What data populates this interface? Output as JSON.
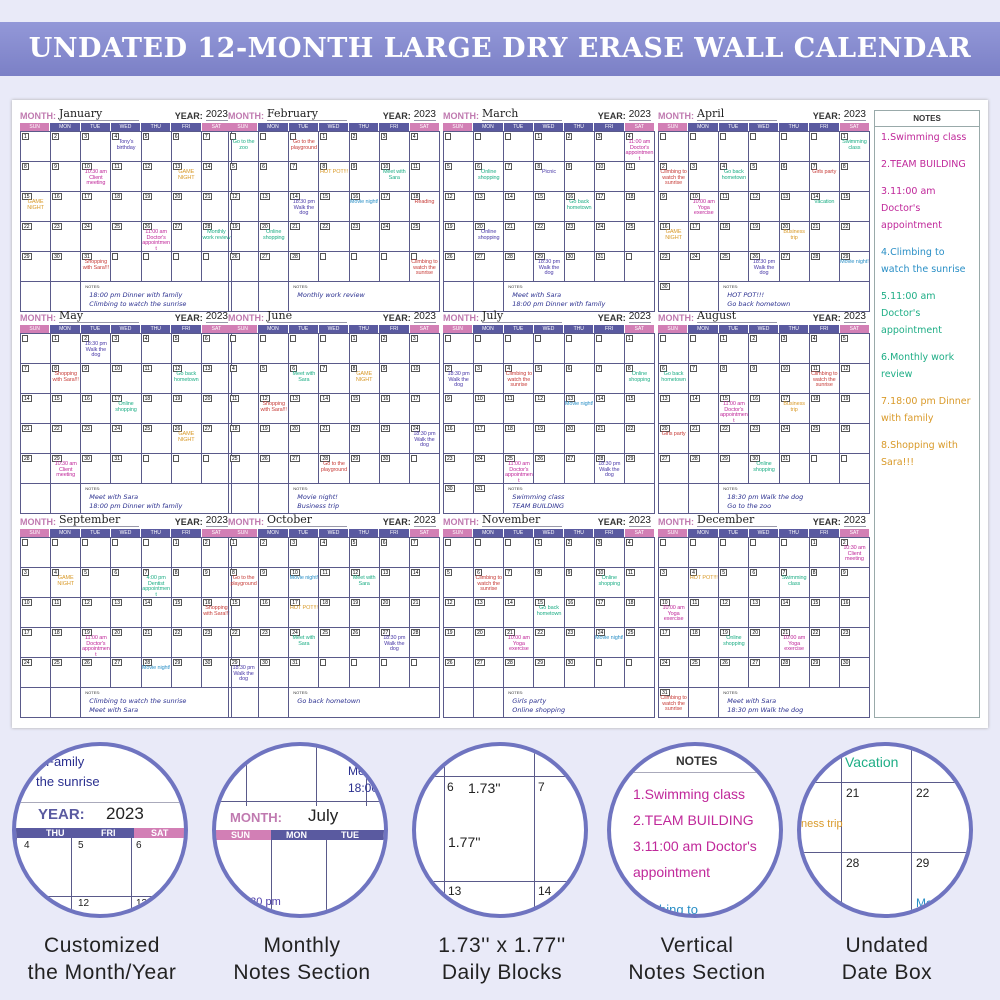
{
  "title": "UNDATED 12-MONTH LARGE DRY ERASE WALL CALENDAR",
  "labels": {
    "month": "MONTH:",
    "year": "YEAR:",
    "notes": "NOTES:",
    "days": [
      "SUN",
      "MON",
      "TUE",
      "WED",
      "THU",
      "FRI",
      "SAT"
    ]
  },
  "colors": {
    "pink": "#c0289a",
    "orange": "#d99a2a",
    "teal": "#1fae86",
    "purple": "#4a3aa8",
    "red": "#c8403c",
    "blue": "#2a8fc6",
    "navy": "#2a2f8f"
  },
  "months": [
    {
      "name": "January",
      "year": "2023",
      "start": 0,
      "days": 31,
      "notes": [
        [
          4,
          "Tony's birthday",
          "purple"
        ],
        [
          10,
          "10:30 am Client meeting",
          "pink"
        ],
        [
          13,
          "GAME NIGHT",
          "orange"
        ],
        [
          15,
          "GAME NIGHT",
          "orange"
        ],
        [
          26,
          "11:00 am Doctor's appointment",
          "pink"
        ],
        [
          28,
          "Monthly work review",
          "teal"
        ],
        [
          31,
          "Shopping with Sara!!!",
          "red"
        ]
      ],
      "memo": [
        "18:00 pm Dinner with family",
        "Climbing to watch the sunrise"
      ]
    },
    {
      "name": "February",
      "year": "2023",
      "start": 3,
      "days": 28,
      "notes": [
        [
          -1,
          "Go to the zoo",
          "teal"
        ],
        [
          -3,
          "Go to the playground",
          "red"
        ],
        [
          8,
          "HOT POT!!!",
          "orange"
        ],
        [
          10,
          "Meet with Sara",
          "teal"
        ],
        [
          14,
          "18:30 pm Walk the dog",
          "purple"
        ],
        [
          16,
          "Movie night!",
          "blue"
        ],
        [
          18,
          "Reading",
          "red"
        ],
        [
          20,
          "Online shopping",
          "teal"
        ],
        [
          34,
          "Climbing to watch the sunrise",
          "red"
        ]
      ],
      "memo": [
        "Monthly work review"
      ]
    },
    {
      "name": "March",
      "year": "2023",
      "start": 3,
      "days": 31,
      "notes": [
        [
          4,
          "11:00 am Doctor's appointment",
          "pink"
        ],
        [
          6,
          "Online shopping",
          "teal"
        ],
        [
          8,
          "Picnic",
          "purple"
        ],
        [
          16,
          "Go back hometown",
          "teal"
        ],
        [
          20,
          "Online shopping",
          "purple"
        ],
        [
          29,
          "18:30 pm Walk the dog",
          "purple"
        ]
      ],
      "memo": [
        "Meet with Sara",
        "18:00 pm Dinner with family"
      ]
    },
    {
      "name": "April",
      "year": "2023",
      "start": 6,
      "days": 30,
      "notes": [
        [
          1,
          "Swimming class",
          "teal"
        ],
        [
          2,
          "Climbing to watch the sunrise",
          "red"
        ],
        [
          4,
          "Go back hometown",
          "teal"
        ],
        [
          7,
          "Girls party",
          "red"
        ],
        [
          10,
          "10:00 am Yoga exercise",
          "pink"
        ],
        [
          14,
          "Vacation",
          "teal"
        ],
        [
          16,
          "GAME NIGHT",
          "orange"
        ],
        [
          20,
          "Business trip",
          "orange"
        ],
        [
          26,
          "18:30 pm Walk the dog",
          "purple"
        ],
        [
          29,
          "Movie night!",
          "blue"
        ]
      ],
      "memo": [
        "HOT POT!!!",
        "Go back hometown"
      ]
    },
    {
      "name": "May",
      "year": "2023",
      "start": 1,
      "days": 31,
      "notes": [
        [
          2,
          "18:30 pm Walk the dog",
          "purple"
        ],
        [
          8,
          "Shopping with Sara!!!",
          "red"
        ],
        [
          12,
          "Go back hometown",
          "teal"
        ],
        [
          17,
          "Online shopping",
          "teal"
        ],
        [
          26,
          "GAME NIGHT",
          "orange"
        ],
        [
          29,
          "10:30 am Client meeting",
          "pink"
        ]
      ],
      "memo": [
        "Meet with Sara",
        "18:00 pm Dinner with family"
      ]
    },
    {
      "name": "June",
      "year": "2023",
      "start": 4,
      "days": 30,
      "notes": [
        [
          6,
          "Meet with Sara",
          "teal"
        ],
        [
          8,
          "GAME NIGHT",
          "orange"
        ],
        [
          12,
          "Shopping with Sara!!!",
          "red"
        ],
        [
          24,
          "18:30 pm Walk the dog",
          "purple"
        ],
        [
          28,
          "Go to the playground",
          "red"
        ]
      ],
      "memo": [
        "Movie night!",
        "Business trip"
      ]
    },
    {
      "name": "July",
      "year": "2023",
      "start": 6,
      "days": 31,
      "notes": [
        [
          2,
          "18:30 pm Walk the dog",
          "purple"
        ],
        [
          4,
          "Climbing to watch the sunrise",
          "red"
        ],
        [
          8,
          "Online shopping",
          "teal"
        ],
        [
          13,
          "Movie night!",
          "blue"
        ],
        [
          25,
          "11:00 am Doctor's appointment",
          "pink"
        ],
        [
          28,
          "18:30 pm Walk the dog",
          "purple"
        ]
      ],
      "memo": [
        "Swimming class",
        "TEAM BUILDING"
      ]
    },
    {
      "name": "August",
      "year": "2023",
      "start": 2,
      "days": 31,
      "notes": [
        [
          6,
          "Go back hometown",
          "teal"
        ],
        [
          11,
          "Climbing to watch the sunrise",
          "red"
        ],
        [
          15,
          "11:00 am Doctor's appointment",
          "pink"
        ],
        [
          17,
          "Business trip",
          "orange"
        ],
        [
          20,
          "Girls party",
          "red"
        ],
        [
          30,
          "Online shopping",
          "teal"
        ]
      ],
      "memo": [
        "18:30 pm Walk the dog",
        "Go to the zoo"
      ]
    },
    {
      "name": "September",
      "year": "2023",
      "start": 5,
      "days": 30,
      "notes": [
        [
          4,
          "GAME NIGHT",
          "orange"
        ],
        [
          7,
          "4:00 pm Dentist appointment",
          "teal"
        ],
        [
          16,
          "Shopping with Sara!!!",
          "red"
        ],
        [
          19,
          "11:00 am Doctor's appointment",
          "pink"
        ],
        [
          28,
          "Movie night!",
          "blue"
        ]
      ],
      "memo": [
        "Climbing to watch the sunrise",
        "Meet with Sara"
      ]
    },
    {
      "name": "October",
      "year": "2023",
      "start": 0,
      "days": 31,
      "notes": [
        [
          8,
          "Go to the playground",
          "red"
        ],
        [
          10,
          "Movie night!",
          "blue"
        ],
        [
          12,
          "Meet with Sara",
          "teal"
        ],
        [
          17,
          "HOT POT!!!",
          "orange"
        ],
        [
          24,
          "Meet with Sara",
          "teal"
        ],
        [
          27,
          "18:30 pm Walk the dog",
          "purple"
        ],
        [
          29,
          "18:30 pm Walk the dog",
          "purple"
        ]
      ],
      "memo": [
        "Go back hometown"
      ]
    },
    {
      "name": "November",
      "year": "2023",
      "start": 3,
      "days": 30,
      "notes": [
        [
          6,
          "Climbing to watch the sunrise",
          "red"
        ],
        [
          10,
          "Online shopping",
          "teal"
        ],
        [
          15,
          "Go back hometown",
          "teal"
        ],
        [
          21,
          "10:00 am Yoga exercise",
          "pink"
        ],
        [
          24,
          "Movie night!",
          "blue"
        ]
      ],
      "memo": [
        "Girls party",
        "Online shopping"
      ]
    },
    {
      "name": "December",
      "year": "2023",
      "start": 5,
      "days": 31,
      "notes": [
        [
          2,
          "10:30 am Client meeting",
          "pink"
        ],
        [
          4,
          "HOT POT!!!",
          "orange"
        ],
        [
          7,
          "Swimming class",
          "teal"
        ],
        [
          10,
          "10:00 am Yoga exercise",
          "pink"
        ],
        [
          19,
          "Online shopping",
          "teal"
        ],
        [
          21,
          "10:00 am Yoga exercise",
          "pink"
        ],
        [
          31,
          "Climbing to watch the sunrise",
          "red"
        ]
      ],
      "memo": [
        "Meet with Sara",
        "18:30 pm Walk the dog"
      ]
    }
  ],
  "notes_column": {
    "title": "NOTES",
    "items": [
      [
        "1.Swimming class",
        "pink"
      ],
      [
        "2.TEAM BUILDING",
        "pink"
      ],
      [
        "3.11:00 am Doctor's appointment",
        "pink"
      ],
      [
        "4.Climbing to watch the sunrise",
        "blue"
      ],
      [
        "5.11:00 am Doctor's appointment",
        "teal"
      ],
      [
        "6.Monthly work review",
        "teal"
      ],
      [
        "7.18:00 pm Dinner with family",
        "orange"
      ],
      [
        "8.Shopping with Sara!!!",
        "orange"
      ]
    ]
  },
  "features": [
    {
      "caption1": "Customized",
      "caption2": "the Month/Year",
      "texts": [
        "Family",
        "the sunrise",
        "YEAR:",
        "2023",
        "THU",
        "FRI",
        "SAT",
        "4",
        "5",
        "6",
        "12",
        "13"
      ]
    },
    {
      "caption1": "Monthly",
      "caption2": "Notes Section",
      "texts": [
        "MONTH:",
        "July",
        "SUN",
        "MON",
        "TUE",
        "Mee",
        "18:00",
        "3:30 pm"
      ]
    },
    {
      "caption1": "1.73'' x 1.77''",
      "caption2": "Daily Blocks",
      "texts": [
        "6",
        "1.73''",
        "7",
        "1.77''",
        "13",
        "14"
      ]
    },
    {
      "caption1": "Vertical",
      "caption2": "Notes Section",
      "texts": [
        "NOTES",
        "1.Swimming class",
        "2.TEAM BUILDING",
        "3.11:00 am Doctor's",
        "appointment",
        "Climbing to"
      ]
    },
    {
      "caption1": "Undated",
      "caption2": "Date Box",
      "texts": [
        "Vacation",
        "21",
        "22",
        "ness trip",
        "28",
        "29",
        "Movi"
      ]
    }
  ]
}
